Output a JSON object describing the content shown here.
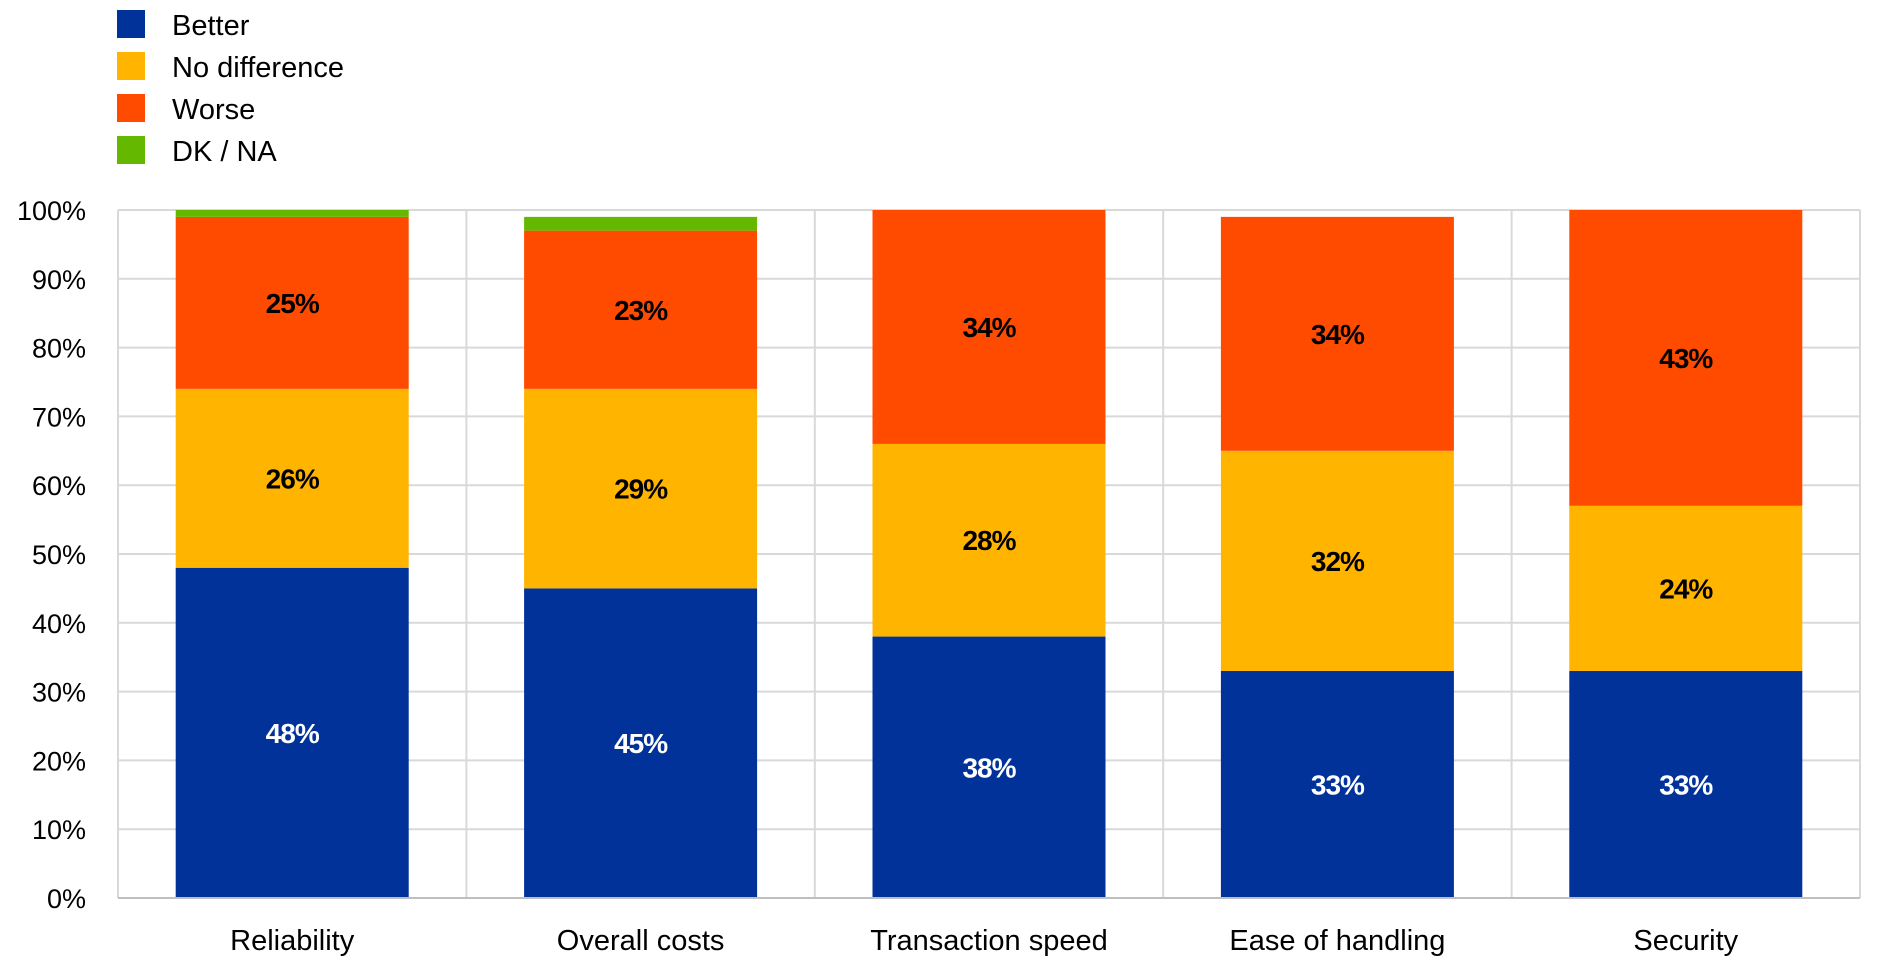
{
  "chart_data": {
    "type": "bar",
    "stacked": true,
    "categories": [
      "Reliability",
      "Overall costs",
      "Transaction speed",
      "Ease of handling",
      "Security"
    ],
    "series": [
      {
        "name": "Better",
        "color": "#003299",
        "label_color": "#ffffff",
        "values": [
          48,
          45,
          38,
          33,
          33
        ]
      },
      {
        "name": "No difference",
        "color": "#ffb400",
        "label_color": "#000000",
        "values": [
          26,
          29,
          28,
          32,
          24
        ]
      },
      {
        "name": "Worse",
        "color": "#ff4b00",
        "label_color": "#000000",
        "values": [
          25,
          23,
          34,
          34,
          43
        ]
      },
      {
        "name": "DK / NA",
        "color": "#65b800",
        "label_color": "#000000",
        "values": [
          1,
          2,
          0,
          0,
          0
        ]
      }
    ],
    "labeled_series": [
      "Better",
      "No difference",
      "Worse"
    ],
    "ylim": [
      0,
      100
    ],
    "yticks": [
      "0%",
      "10%",
      "20%",
      "30%",
      "40%",
      "50%",
      "60%",
      "70%",
      "80%",
      "90%",
      "100%"
    ],
    "grid": true,
    "legend_position": "top-left",
    "title": "",
    "xlabel": "",
    "ylabel": ""
  }
}
